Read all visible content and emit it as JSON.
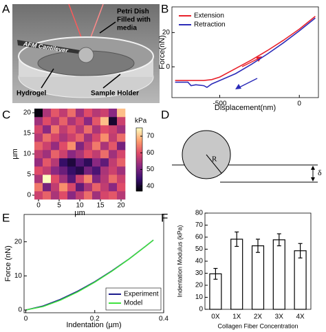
{
  "panel_labels": [
    "A",
    "B",
    "C",
    "D",
    "E",
    "F"
  ],
  "figure_a": {
    "cantilever": "AFM Cantilever",
    "petri_dish": [
      "Petri Dish",
      "Filled with",
      "media"
    ],
    "hydrogel": "Hydrogel",
    "sample_holder": "Sample Holder"
  },
  "figure_d": {
    "radius": "R",
    "depth": "δ"
  },
  "chart_data": [
    {
      "type": "line",
      "xlabel": "Displacement(nm)",
      "ylabel": "Force(nN)",
      "xlim": [
        -800,
        120
      ],
      "ylim": [
        -18,
        35
      ],
      "xticks": [
        -500,
        0
      ],
      "yticks": [
        0,
        20
      ],
      "legend": "upper left",
      "series": [
        {
          "name": "Extension",
          "color": "#e8202a",
          "x": [
            -780,
            -700,
            -600,
            -550,
            -500,
            -400,
            -300,
            -200,
            -100,
            0,
            100
          ],
          "values": [
            -8,
            -8,
            -8,
            -7.5,
            -6,
            -1,
            4,
            9.5,
            15.5,
            22,
            29.5
          ]
        },
        {
          "name": "Retraction",
          "color": "#2b2bb8",
          "x": [
            -780,
            -700,
            -680,
            -650,
            -600,
            -580,
            -550,
            -500,
            -400,
            -300,
            -200,
            -100,
            0,
            100
          ],
          "values": [
            -9,
            -9,
            -11,
            -10.5,
            -11,
            -12,
            -10,
            -8,
            -4,
            1.5,
            7.5,
            14,
            21,
            28.5
          ]
        }
      ]
    },
    {
      "type": "heatmap",
      "xlabel": "µm",
      "ylabel": "µm",
      "colorbar_label": "kPa",
      "xlim": [
        -1,
        21
      ],
      "ylim": [
        -1,
        21
      ],
      "xticks": [
        0,
        5,
        10,
        15,
        20
      ],
      "yticks": [
        0,
        5,
        10,
        15,
        20
      ],
      "clim": [
        37,
        75
      ],
      "colorbar_ticks": [
        40,
        50,
        60,
        70
      ],
      "colormap": [
        "#000004",
        "#3b0f70",
        "#8c2981",
        "#de4968",
        "#fe9f6d",
        "#fcfdbf"
      ],
      "x": [
        0,
        2,
        4,
        6,
        8,
        10,
        12,
        14,
        16,
        18,
        20
      ],
      "y": [
        0,
        2,
        4,
        6,
        8,
        10,
        12,
        14,
        16,
        18,
        20
      ],
      "z": [
        [
          58,
          62,
          55,
          60,
          52,
          57,
          63,
          54,
          59,
          61,
          56
        ],
        [
          64,
          50,
          57,
          66,
          59,
          48,
          55,
          62,
          57,
          52,
          60
        ],
        [
          55,
          75,
          60,
          54,
          47,
          58,
          65,
          51,
          56,
          63,
          58
        ],
        [
          60,
          57,
          52,
          49,
          44,
          42,
          50,
          46,
          55,
          58,
          54
        ],
        [
          53,
          61,
          56,
          44,
          41,
          47,
          43,
          52,
          48,
          57,
          62
        ],
        [
          57,
          54,
          62,
          58,
          52,
          55,
          60,
          57,
          63,
          54,
          59
        ],
        [
          62,
          58,
          53,
          60,
          66,
          51,
          57,
          64,
          55,
          61,
          50
        ],
        [
          56,
          63,
          59,
          55,
          58,
          62,
          54,
          59,
          66,
          57,
          63
        ],
        [
          59,
          52,
          64,
          57,
          61,
          56,
          63,
          55,
          60,
          58,
          54
        ],
        [
          54,
          60,
          56,
          62,
          55,
          59,
          52,
          61,
          70,
          40,
          58
        ],
        [
          38,
          55,
          61,
          57,
          63,
          54,
          60,
          56,
          58,
          52,
          70
        ]
      ]
    },
    {
      "type": "line",
      "xlabel": "Indentation (µm)",
      "ylabel": "Force (nN)",
      "xlim": [
        -0.005,
        0.4
      ],
      "ylim": [
        -0.8,
        28
      ],
      "xticks": [
        0,
        0.2,
        0.4
      ],
      "yticks": [
        0,
        10,
        20
      ],
      "legend": "lower right",
      "series": [
        {
          "name": "Experiment",
          "color": "#1a1a8c",
          "x": [
            0,
            0.05,
            0.1,
            0.15,
            0.2,
            0.25,
            0.3,
            0.35,
            0.37
          ],
          "values": [
            0,
            1.2,
            3.1,
            5.5,
            8.3,
            11.5,
            15.0,
            18.9,
            20.5
          ]
        },
        {
          "name": "Model",
          "color": "#3ee23e",
          "x": [
            0,
            0.05,
            0.1,
            0.15,
            0.2,
            0.25,
            0.3,
            0.35,
            0.37
          ],
          "values": [
            0,
            1.02,
            2.88,
            5.29,
            8.15,
            11.39,
            14.97,
            18.86,
            20.5
          ]
        }
      ]
    },
    {
      "type": "bar",
      "xlabel": "Collagen Fiber Concentration",
      "ylabel": "Indentation Modulus (kPa)",
      "categories": [
        "0X",
        "1X",
        "2X",
        "3X",
        "4X"
      ],
      "values": [
        29.5,
        58.3,
        52.8,
        57.8,
        48.7
      ],
      "errors": [
        4.5,
        6,
        5.5,
        5,
        6
      ],
      "color": "#ffffff",
      "ylim": [
        0,
        80
      ],
      "yticks": [
        0,
        10,
        20,
        30,
        40,
        50,
        60,
        70,
        80
      ]
    }
  ]
}
